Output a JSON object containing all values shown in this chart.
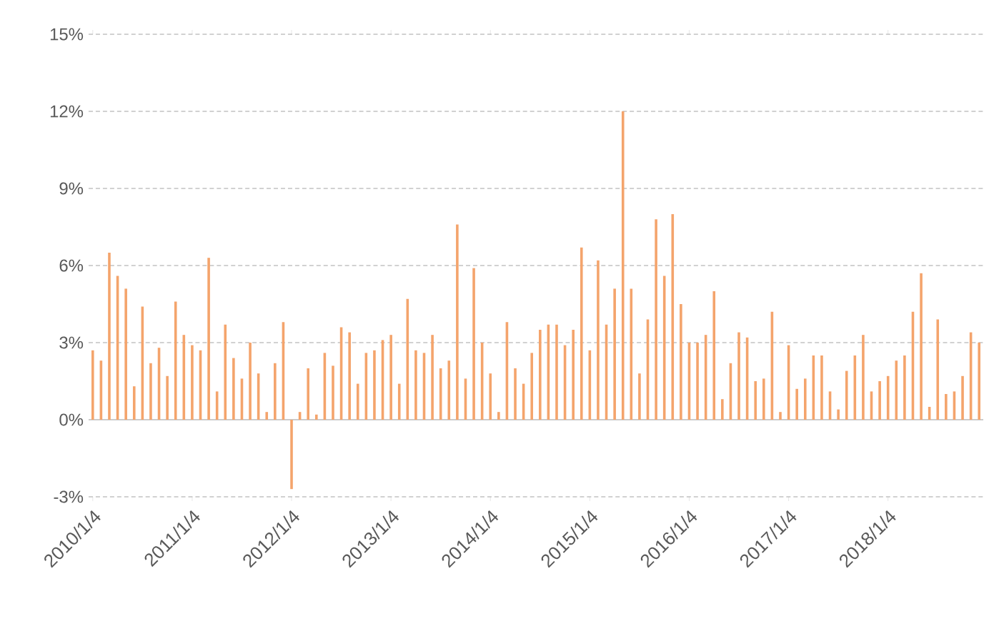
{
  "chart_data": {
    "type": "bar",
    "categories": [
      "2010/1/4",
      null,
      null,
      null,
      null,
      null,
      null,
      null,
      null,
      null,
      null,
      null,
      "2011/1/4",
      null,
      null,
      null,
      null,
      null,
      null,
      null,
      null,
      null,
      null,
      null,
      "2012/1/4",
      null,
      null,
      null,
      null,
      null,
      null,
      null,
      null,
      null,
      null,
      null,
      "2013/1/4",
      null,
      null,
      null,
      null,
      null,
      null,
      null,
      null,
      null,
      null,
      null,
      "2014/1/4",
      null,
      null,
      null,
      null,
      null,
      null,
      null,
      null,
      null,
      null,
      null,
      "2015/1/4",
      null,
      null,
      null,
      null,
      null,
      null,
      null,
      null,
      null,
      null,
      null,
      "2016/1/4",
      null,
      null,
      null,
      null,
      null,
      null,
      null,
      null,
      null,
      null,
      null,
      "2017/1/4",
      null,
      null,
      null,
      null,
      null,
      null,
      null,
      null,
      null,
      null,
      null,
      "2018/1/4",
      null,
      null,
      null,
      null,
      null,
      null,
      null,
      null,
      null,
      null,
      null
    ],
    "values": [
      2.7,
      2.3,
      6.5,
      5.6,
      5.1,
      1.3,
      4.4,
      2.2,
      2.8,
      1.7,
      4.6,
      3.3,
      2.9,
      2.7,
      6.3,
      1.1,
      3.7,
      2.4,
      1.6,
      3.0,
      1.8,
      0.3,
      2.2,
      3.8,
      -2.7,
      0.3,
      2.0,
      0.2,
      2.6,
      2.1,
      3.6,
      3.4,
      1.4,
      2.6,
      2.7,
      3.1,
      3.3,
      1.4,
      4.7,
      2.7,
      2.6,
      3.3,
      2.0,
      2.3,
      7.6,
      1.6,
      5.9,
      3.0,
      1.8,
      0.3,
      3.8,
      2.0,
      1.4,
      2.6,
      3.5,
      3.7,
      3.7,
      2.9,
      3.5,
      6.7,
      2.7,
      6.2,
      3.7,
      5.1,
      12.0,
      5.1,
      1.8,
      3.9,
      7.8,
      5.6,
      8.0,
      4.5,
      3.0,
      3.0,
      3.3,
      5.0,
      0.8,
      2.2,
      3.4,
      3.2,
      1.5,
      1.6,
      4.2,
      0.3,
      2.9,
      1.2,
      1.6,
      2.5,
      2.5,
      1.1,
      0.4,
      1.9,
      2.5,
      3.3,
      1.1,
      1.5,
      1.7,
      2.3,
      2.5,
      4.2,
      5.7,
      0.5,
      3.9,
      1.0,
      1.1,
      1.7,
      3.4,
      3.0
    ],
    "color": "#f4a46c",
    "ylim": [
      -3,
      15
    ],
    "yticks": [
      {
        "value": -3,
        "label": "-3%"
      },
      {
        "value": 0,
        "label": "0%"
      },
      {
        "value": 3,
        "label": "3%"
      },
      {
        "value": 6,
        "label": "6%"
      },
      {
        "value": 9,
        "label": "9%"
      },
      {
        "value": 12,
        "label": "12%"
      },
      {
        "value": 15,
        "label": "15%"
      }
    ],
    "grid": "y"
  }
}
